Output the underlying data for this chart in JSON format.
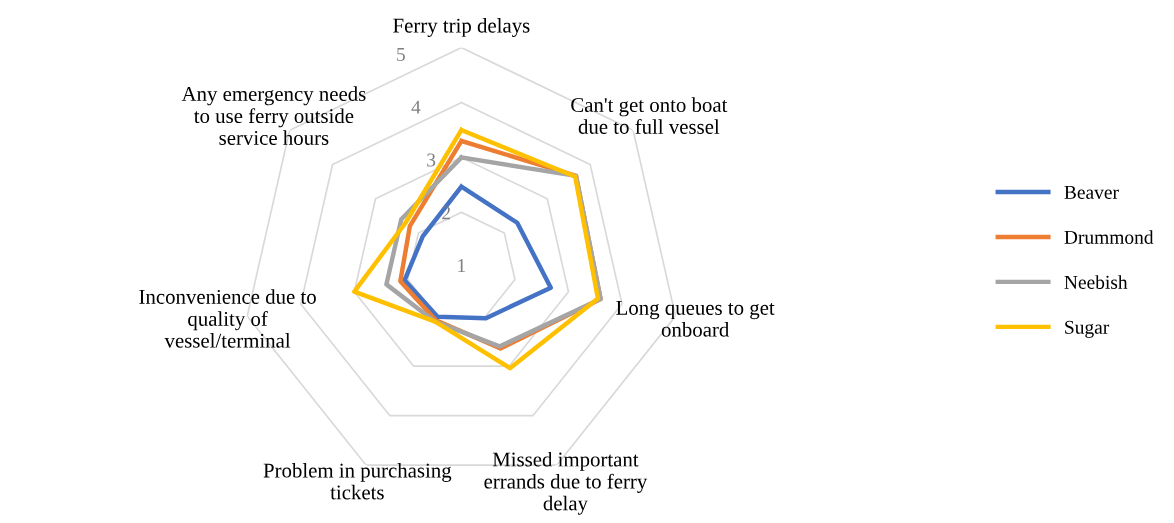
{
  "chart_data": {
    "type": "radar",
    "categories": [
      "Ferry trip delays",
      "Can't get onto boat\ndue to full vessel",
      "Long queues to get\nonboard",
      "Missed important\nerrands due to ferry\ndelay",
      "Problem in purchasing\ntickets",
      "Inconvenience due to\nquality of\nvessel/terminal",
      "Any emergency needs\nto use ferry outside\nservice hours"
    ],
    "series": [
      {
        "name": "Beaver",
        "color": "#4472c4",
        "values": [
          2.47,
          2.3,
          2.67,
          2.03,
          2.0,
          2.06,
          1.9
        ]
      },
      {
        "name": "Drummond",
        "color": "#ed7d31",
        "values": [
          3.3,
          3.67,
          3.6,
          2.64,
          2.07,
          2.14,
          2.2
        ]
      },
      {
        "name": "Neebish",
        "color": "#a5a5a5",
        "values": [
          3.0,
          3.67,
          3.6,
          2.6,
          2.1,
          2.4,
          2.4
        ]
      },
      {
        "name": "Sugar",
        "color": "#ffc000",
        "values": [
          3.5,
          3.65,
          3.55,
          3.04,
          2.1,
          3.0,
          2.3
        ]
      }
    ],
    "ylim": [
      1,
      5
    ],
    "yticks": [
      1,
      2,
      3,
      4,
      5
    ],
    "grid": true,
    "legend": "right",
    "marker": "none",
    "line_style": "solid"
  }
}
